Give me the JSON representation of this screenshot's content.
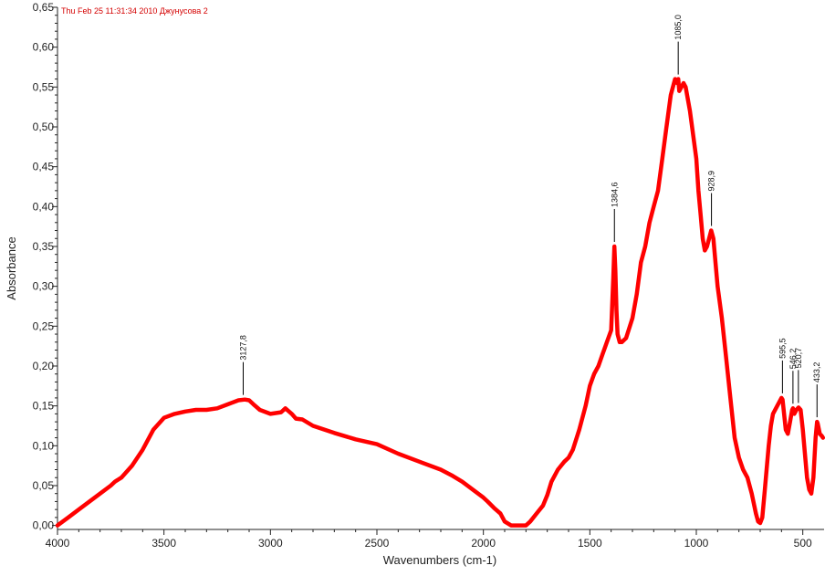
{
  "header": {
    "text": "Thu Feb 25 11:31:34 2010 Джунусова 2"
  },
  "chart_data": {
    "type": "line",
    "xlabel": "Wavenumbers (cm-1)",
    "ylabel": "Absorbance",
    "xlim": [
      4000,
      400
    ],
    "ylim": [
      -0.005,
      0.65
    ],
    "x_ticks": [
      4000,
      3500,
      3000,
      2500,
      2000,
      1500,
      1000,
      500
    ],
    "y_ticks": [
      0.0,
      0.05,
      0.1,
      0.15,
      0.2,
      0.25,
      0.3,
      0.35,
      0.4,
      0.45,
      0.5,
      0.55,
      0.6,
      0.65
    ],
    "x_tick_labels": [
      "4000",
      "3500",
      "3000",
      "2500",
      "2000",
      "1500",
      "1000",
      "500"
    ],
    "y_tick_labels": [
      "0,00",
      "0,05",
      "0,10",
      "0,15",
      "0,20",
      "0,25",
      "0,30",
      "0,35",
      "0,40",
      "0,45",
      "0,50",
      "0,55",
      "0,60",
      "0,65"
    ],
    "grid": false,
    "series": [
      {
        "color": "#ff0000",
        "x": [
          4000,
          3950,
          3900,
          3850,
          3800,
          3750,
          3730,
          3700,
          3650,
          3600,
          3550,
          3500,
          3450,
          3400,
          3350,
          3300,
          3250,
          3200,
          3150,
          3120,
          3100,
          3080,
          3050,
          3000,
          2950,
          2930,
          2900,
          2880,
          2850,
          2800,
          2700,
          2600,
          2500,
          2400,
          2300,
          2200,
          2150,
          2100,
          2050,
          2000,
          1980,
          1950,
          1920,
          1900,
          1870,
          1850,
          1800,
          1780,
          1750,
          1720,
          1700,
          1680,
          1650,
          1620,
          1600,
          1580,
          1550,
          1520,
          1500,
          1480,
          1460,
          1440,
          1420,
          1400,
          1390,
          1385,
          1380,
          1375,
          1370,
          1360,
          1350,
          1330,
          1300,
          1280,
          1260,
          1240,
          1220,
          1200,
          1180,
          1160,
          1140,
          1120,
          1100,
          1090,
          1085,
          1080,
          1070,
          1060,
          1050,
          1030,
          1000,
          990,
          980,
          970,
          960,
          950,
          940,
          930,
          920,
          910,
          900,
          880,
          860,
          840,
          820,
          800,
          780,
          760,
          740,
          720,
          710,
          700,
          690,
          680,
          670,
          660,
          650,
          640,
          620,
          600,
          595,
          590,
          580,
          570,
          560,
          550,
          546,
          540,
          530,
          520,
          510,
          500,
          490,
          480,
          470,
          460,
          450,
          440,
          433,
          430,
          420,
          410,
          405
        ],
        "y": [
          0.0,
          0.01,
          0.02,
          0.03,
          0.04,
          0.05,
          0.055,
          0.06,
          0.075,
          0.095,
          0.12,
          0.135,
          0.14,
          0.143,
          0.145,
          0.145,
          0.147,
          0.152,
          0.157,
          0.158,
          0.157,
          0.152,
          0.145,
          0.14,
          0.142,
          0.147,
          0.14,
          0.134,
          0.133,
          0.125,
          0.116,
          0.108,
          0.102,
          0.09,
          0.08,
          0.07,
          0.063,
          0.055,
          0.045,
          0.035,
          0.03,
          0.022,
          0.015,
          0.005,
          0.0,
          0.0,
          0.0,
          0.005,
          0.015,
          0.025,
          0.038,
          0.055,
          0.07,
          0.08,
          0.085,
          0.095,
          0.12,
          0.15,
          0.175,
          0.19,
          0.2,
          0.215,
          0.23,
          0.245,
          0.31,
          0.35,
          0.32,
          0.27,
          0.24,
          0.23,
          0.23,
          0.235,
          0.26,
          0.29,
          0.33,
          0.35,
          0.38,
          0.4,
          0.42,
          0.46,
          0.5,
          0.54,
          0.56,
          0.555,
          0.56,
          0.545,
          0.55,
          0.555,
          0.55,
          0.52,
          0.46,
          0.42,
          0.39,
          0.36,
          0.345,
          0.35,
          0.36,
          0.37,
          0.36,
          0.33,
          0.3,
          0.26,
          0.21,
          0.16,
          0.11,
          0.085,
          0.07,
          0.06,
          0.04,
          0.015,
          0.005,
          0.003,
          0.01,
          0.04,
          0.07,
          0.1,
          0.125,
          0.14,
          0.15,
          0.16,
          0.158,
          0.145,
          0.12,
          0.115,
          0.13,
          0.145,
          0.147,
          0.14,
          0.145,
          0.148,
          0.145,
          0.12,
          0.09,
          0.06,
          0.045,
          0.04,
          0.06,
          0.11,
          0.13,
          0.128,
          0.115,
          0.112,
          0.11
        ]
      }
    ],
    "peak_annotations": [
      {
        "x": 3127.8,
        "y": 0.158,
        "label": "3127,8"
      },
      {
        "x": 1384.6,
        "y": 0.35,
        "label": "1384,6"
      },
      {
        "x": 1085.0,
        "y": 0.56,
        "label": "1085,0"
      },
      {
        "x": 928.9,
        "y": 0.37,
        "label": "928,9"
      },
      {
        "x": 595.5,
        "y": 0.16,
        "label": "595,5"
      },
      {
        "x": 546.2,
        "y": 0.147,
        "label": "546,2"
      },
      {
        "x": 520.7,
        "y": 0.148,
        "label": "520,7"
      },
      {
        "x": 433.2,
        "y": 0.13,
        "label": "433,2"
      }
    ]
  }
}
